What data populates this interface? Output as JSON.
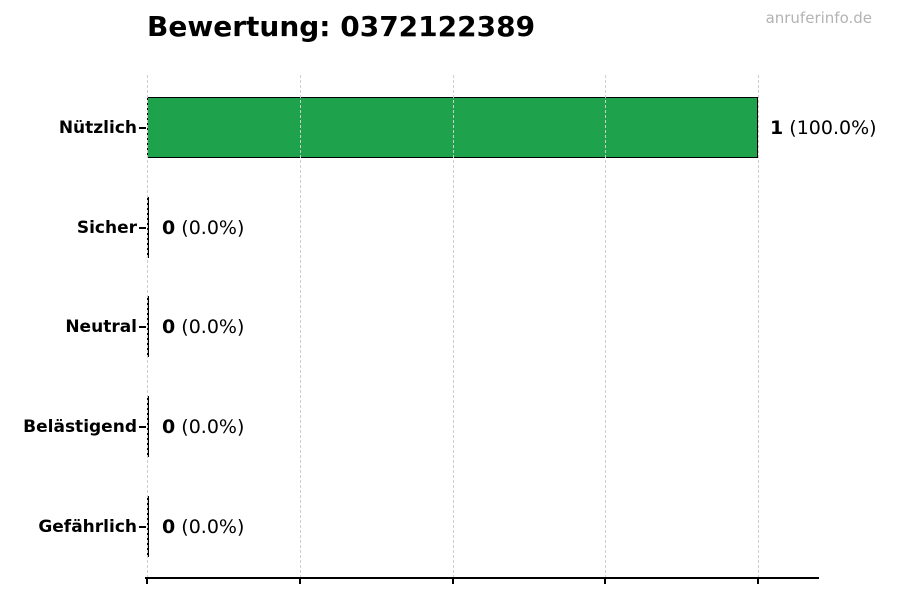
{
  "page": {
    "watermark": "anruferinfo.de"
  },
  "chart_data": {
    "type": "bar",
    "orientation": "horizontal",
    "title": "Bewertung: 0372122389",
    "categories": [
      "Nützlich",
      "Sicher",
      "Neutral",
      "Belästigend",
      "Gefährlich"
    ],
    "values": [
      1,
      0,
      0,
      0,
      0
    ],
    "values_pct": [
      100.0,
      0.0,
      0.0,
      0.0,
      0.0
    ],
    "value_labels": [
      {
        "count": "1",
        "pct": "(100.0%)"
      },
      {
        "count": "0",
        "pct": "(0.0%)"
      },
      {
        "count": "0",
        "pct": "(0.0%)"
      },
      {
        "count": "0",
        "pct": "(0.0%)"
      },
      {
        "count": "0",
        "pct": "(0.0%)"
      }
    ],
    "xlim": [
      0,
      1.1
    ],
    "x_ticks": [
      0,
      0.25,
      0.5,
      0.75,
      1.0
    ],
    "x_tick_labels": [],
    "grid": "vertical-dashed",
    "legend": "none",
    "bar_color": "#1fa24c",
    "bar_edge_color": "#000000",
    "grid_color": "#cdcdcd",
    "watermark_color": "#b3b3b3"
  }
}
